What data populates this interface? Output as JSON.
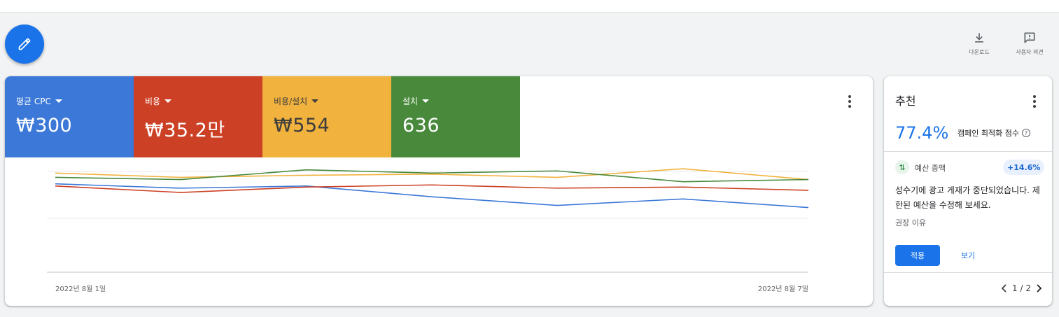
{
  "header": {
    "download_label": "다운로드",
    "feedback_label": "사용자 의견"
  },
  "metrics": [
    {
      "label": "평균 CPC",
      "value": "₩300",
      "color": "#3c78d8"
    },
    {
      "label": "비용",
      "value": "₩35.2만",
      "color": "#cc4125"
    },
    {
      "label": "비용/설치",
      "value": "₩554",
      "color": "#f1b23e"
    },
    {
      "label": "설치",
      "value": "636",
      "color": "#48893c"
    }
  ],
  "chart_data": {
    "type": "line",
    "x": [
      "2022년 8월 1일",
      "",
      "",
      "",
      "",
      "",
      "2022년 8월 7일"
    ],
    "x_tick_labels": [
      "2022년 8월 1일",
      "2022년 8월 7일"
    ],
    "normalized_axes": true,
    "grid": true,
    "ylim": [
      0,
      100
    ],
    "series": [
      {
        "color": "#3c78d8",
        "values": [
          82,
          78,
          80,
          70,
          62,
          68,
          60
        ]
      },
      {
        "color": "#cc4125",
        "values": [
          80,
          74,
          79,
          81,
          78,
          79,
          76
        ]
      },
      {
        "color": "#f1b23e",
        "values": [
          92,
          88,
          90,
          91,
          88,
          96,
          86
        ]
      },
      {
        "color": "#48893c",
        "values": [
          88,
          86,
          95,
          92,
          94,
          84,
          86
        ]
      }
    ]
  },
  "recommendations": {
    "title": "추천",
    "score": "77.4%",
    "score_label": "캠페인 최적화 점수",
    "help_icon": "?",
    "type_icon": "⇅",
    "type_label": "예산 증액",
    "badge": "+14.6%",
    "description": "성수기에 광고 게재가 중단되었습니다. 제한된 예산을 수정해 보세요.",
    "reason_label": "권장 이유",
    "apply_label": "적용",
    "view_label": "보기",
    "pager": "1 / 2"
  }
}
